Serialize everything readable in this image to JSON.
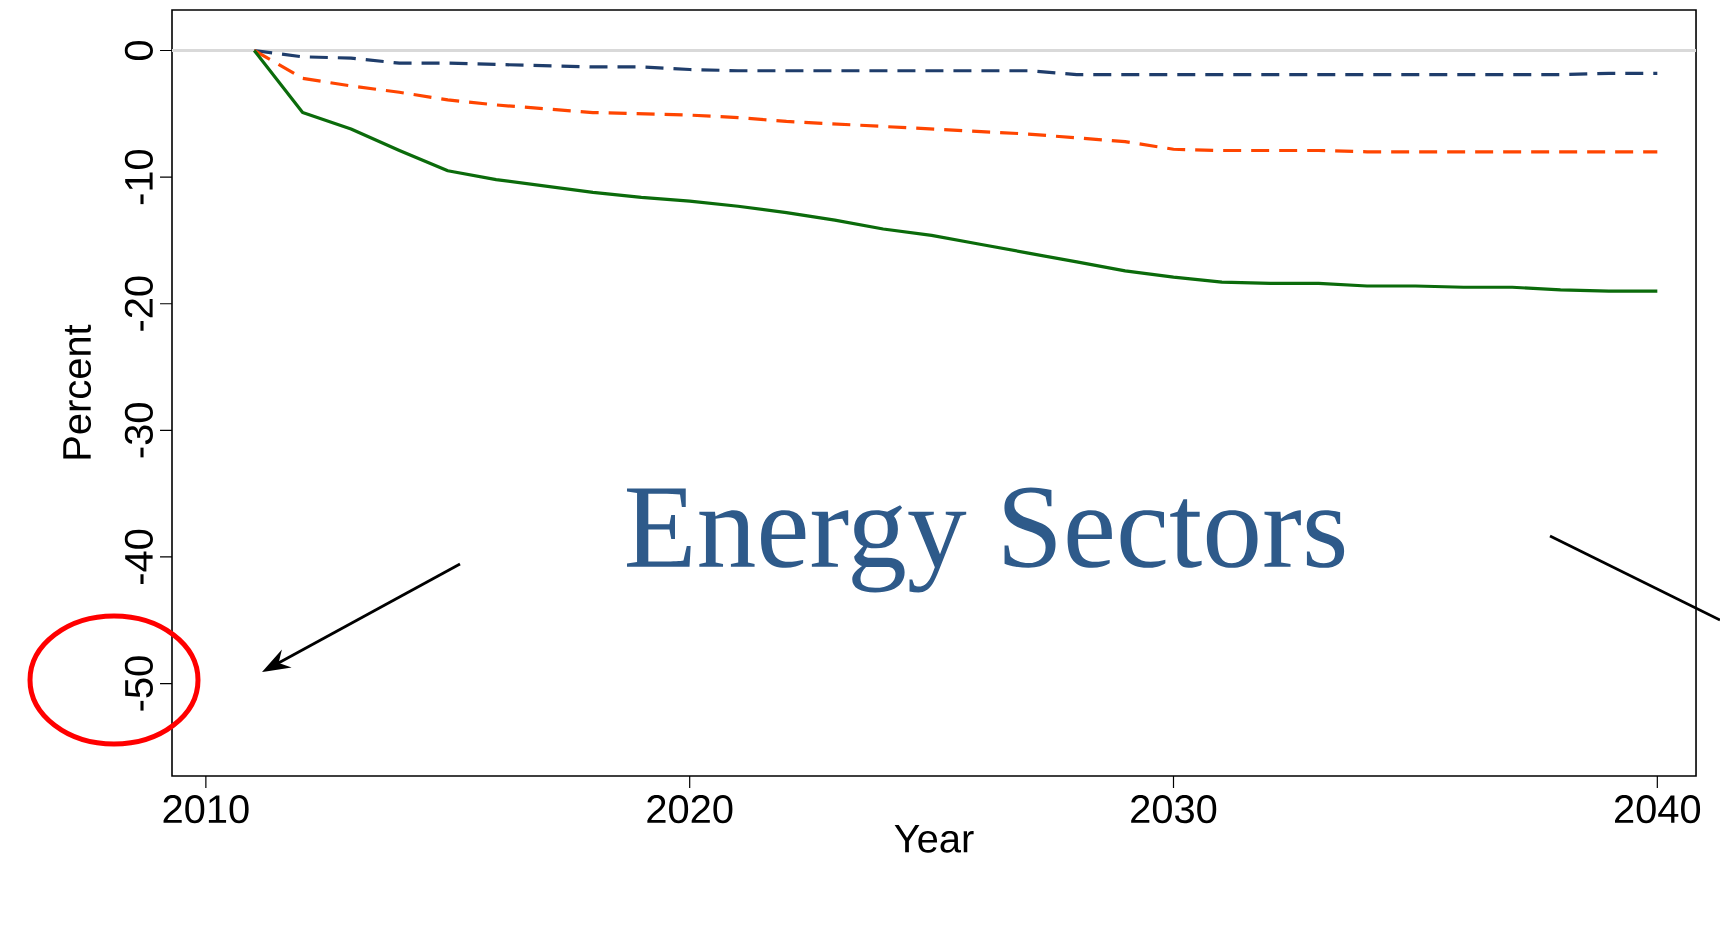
{
  "chart_data": {
    "type": "line",
    "xlabel": "Year",
    "ylabel": "Percent",
    "x": [
      2011,
      2012,
      2013,
      2014,
      2015,
      2016,
      2017,
      2018,
      2019,
      2020,
      2021,
      2022,
      2023,
      2024,
      2025,
      2026,
      2027,
      2028,
      2029,
      2030,
      2031,
      2032,
      2033,
      2034,
      2035,
      2036,
      2037,
      2038,
      2039,
      2040
    ],
    "series": [
      {
        "color": "#1f3d6b",
        "line_style": "dashed",
        "values": [
          0,
          -0.5,
          -0.6,
          -1.0,
          -1.0,
          -1.1,
          -1.2,
          -1.3,
          -1.3,
          -1.5,
          -1.6,
          -1.6,
          -1.6,
          -1.6,
          -1.6,
          -1.6,
          -1.6,
          -1.9,
          -1.9,
          -1.9,
          -1.9,
          -1.9,
          -1.9,
          -1.9,
          -1.9,
          -1.9,
          -1.9,
          -1.9,
          -1.8,
          -1.8
        ]
      },
      {
        "color": "#ff4500",
        "line_style": "dashed",
        "values": [
          0,
          -2.2,
          -2.8,
          -3.3,
          -3.9,
          -4.3,
          -4.6,
          -4.9,
          -5.0,
          -5.1,
          -5.3,
          -5.6,
          -5.8,
          -6.0,
          -6.2,
          -6.4,
          -6.6,
          -6.9,
          -7.2,
          -7.8,
          -7.9,
          -7.9,
          -7.9,
          -8.0,
          -8.0,
          -8.0,
          -8.0,
          -8.0,
          -8.0,
          -8.0
        ]
      },
      {
        "color": "#0b6b0b",
        "line_style": "solid",
        "values": [
          0,
          -4.9,
          -6.2,
          -7.9,
          -9.5,
          -10.2,
          -10.7,
          -11.2,
          -11.6,
          -11.9,
          -12.3,
          -12.8,
          -13.4,
          -14.1,
          -14.6,
          -15.3,
          -16.0,
          -16.7,
          -17.4,
          -17.9,
          -18.3,
          -18.4,
          -18.4,
          -18.6,
          -18.6,
          -18.7,
          -18.7,
          -18.9,
          -19.0,
          -19.0
        ]
      }
    ],
    "xlim": [
      2009.3,
      2040.8
    ],
    "ylim": [
      -57.3,
      3.2
    ],
    "xticks": [
      2010,
      2020,
      2030,
      2040
    ],
    "yticks": [
      -50,
      -40,
      -30,
      -20,
      -10,
      0
    ],
    "ref_lines": [
      {
        "axis": "y",
        "value": 0,
        "color": "#d9d9d9"
      }
    ],
    "annotations": [
      "Energy Sectors"
    ],
    "grid": false,
    "marker": "none"
  }
}
